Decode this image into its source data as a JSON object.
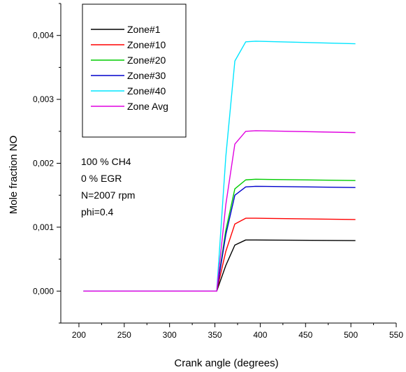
{
  "chart_data": {
    "type": "line",
    "xlabel": "Crank angle (degrees)",
    "ylabel": "Mole fraction NO",
    "xlim": [
      180,
      550
    ],
    "ylim": [
      -0.0005,
      0.0045
    ],
    "xticks": [
      200,
      250,
      300,
      350,
      400,
      450,
      500,
      550
    ],
    "xtick_labels": [
      "200",
      "250",
      "300",
      "350",
      "400",
      "450",
      "500",
      "550"
    ],
    "yticks": [
      0.0,
      0.001,
      0.002,
      0.003,
      0.004
    ],
    "ytick_labels": [
      "0,000",
      "0,001",
      "0,002",
      "0,003",
      "0,004"
    ],
    "grid": false,
    "legend_position": "top-left",
    "annotation_lines": [
      "100 % CH4",
      "0 %  EGR",
      "N=2007 rpm",
      "phi=0.4"
    ],
    "onset": 352,
    "rise_end": 384,
    "x_end": 505,
    "series": [
      {
        "name": "Zone#1",
        "color": "#000000",
        "x": [
          205,
          352,
          362,
          372,
          384,
          395,
          505
        ],
        "y": [
          0,
          0,
          0.0004,
          0.00072,
          0.0008,
          0.0008,
          0.00079
        ]
      },
      {
        "name": "Zone#10",
        "color": "#ff0000",
        "x": [
          205,
          352,
          362,
          372,
          384,
          395,
          505
        ],
        "y": [
          0,
          0,
          0.00062,
          0.00105,
          0.00114,
          0.00114,
          0.00112
        ]
      },
      {
        "name": "Zone#20",
        "color": "#00cc00",
        "x": [
          205,
          352,
          362,
          372,
          384,
          395,
          505
        ],
        "y": [
          0,
          0,
          0.00095,
          0.0016,
          0.00174,
          0.00175,
          0.00173
        ]
      },
      {
        "name": "Zone#30",
        "color": "#0000cc",
        "x": [
          205,
          352,
          362,
          372,
          384,
          395,
          505
        ],
        "y": [
          0,
          0,
          0.00088,
          0.0015,
          0.00163,
          0.00164,
          0.00162
        ]
      },
      {
        "name": "Zone#40",
        "color": "#00e5ff",
        "x": [
          205,
          352,
          362,
          372,
          384,
          395,
          505
        ],
        "y": [
          0,
          0,
          0.0021,
          0.0036,
          0.0039,
          0.00391,
          0.00387
        ]
      },
      {
        "name": "Zone Avg",
        "color": "#e000e0",
        "x": [
          205,
          352,
          362,
          372,
          384,
          395,
          505
        ],
        "y": [
          0,
          0,
          0.00135,
          0.0023,
          0.0025,
          0.00251,
          0.00248
        ]
      }
    ]
  }
}
